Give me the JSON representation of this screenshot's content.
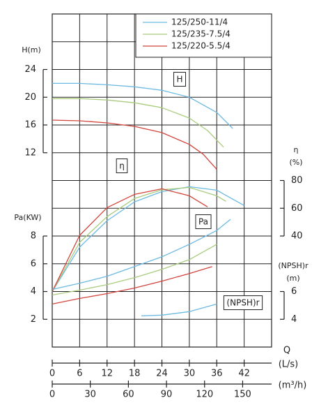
{
  "chart_data": {
    "type": "line",
    "x_label": "Q",
    "x_unit": "(L/s)",
    "xlim": [
      0,
      48
    ],
    "xticks": [
      0,
      6,
      12,
      18,
      24,
      30,
      36,
      42
    ],
    "x2_unit": "(m³/h)",
    "x2lim": [
      0,
      172.8
    ],
    "x2ticks": [
      0,
      30,
      60,
      90,
      120,
      150
    ],
    "grid": true,
    "legend": [
      {
        "name": "125/250-11/4",
        "color": "#6cb9e2"
      },
      {
        "name": "125/235-7.5/4",
        "color": "#a9cc7e"
      },
      {
        "name": "125/220-5.5/4",
        "color": "#d2443c"
      }
    ],
    "panels": [
      {
        "curve_label": "H",
        "axis_label": [
          "H(m)"
        ],
        "ylim": [
          12,
          24
        ],
        "yticks": [
          12,
          16,
          20,
          24
        ],
        "series": [
          {
            "color": "#6cb9e2",
            "x": [
              0,
              6,
              12,
              18,
              24,
              30,
              36,
              39.5
            ],
            "values": [
              22.0,
              22.0,
              21.8,
              21.5,
              21.0,
              20.0,
              17.8,
              15.5
            ]
          },
          {
            "color": "#a9cc7e",
            "x": [
              0,
              6,
              12,
              18,
              24,
              30,
              34,
              37.5
            ],
            "values": [
              19.8,
              19.8,
              19.6,
              19.2,
              18.5,
              17.0,
              15.2,
              12.8
            ]
          },
          {
            "color": "#d2443c",
            "x": [
              0,
              6,
              12,
              18,
              24,
              30,
              33,
              36
            ],
            "values": [
              16.7,
              16.6,
              16.3,
              15.8,
              14.9,
              13.2,
              11.8,
              9.6
            ]
          }
        ]
      },
      {
        "curve_label": "η",
        "axis_label": [
          "η",
          "(%)"
        ],
        "ylim": [
          40,
          80
        ],
        "yticks": [
          40,
          60,
          80
        ],
        "series": [
          {
            "color": "#6cb9e2",
            "x": [
              0,
              6,
              12,
              18,
              24,
              30,
              36,
              42
            ],
            "values": [
              0,
              32,
              51,
              64.6,
              72,
              75.5,
              73,
              62
            ]
          },
          {
            "color": "#a9cc7e",
            "x": [
              0,
              6,
              12,
              18,
              24,
              30,
              36,
              38
            ],
            "values": [
              0,
              35.4,
              54,
              67,
              73.3,
              75,
              69,
              65
            ]
          },
          {
            "color": "#d2443c",
            "x": [
              0,
              6,
              12,
              18,
              24,
              30,
              34
            ],
            "values": [
              0,
              40.5,
              60.5,
              70,
              74,
              69,
              61
            ]
          }
        ]
      },
      {
        "curve_label": "Pa",
        "axis_label": [
          "Pa(KW)"
        ],
        "ylim": [
          2,
          8
        ],
        "yticks": [
          2,
          4,
          6,
          8
        ],
        "series": [
          {
            "color": "#6cb9e2",
            "x": [
              0,
              6,
              12,
              18,
              24,
              30,
              36,
              39
            ],
            "values": [
              4.15,
              4.6,
              5.1,
              5.8,
              6.5,
              7.4,
              8.4,
              9.2
            ]
          },
          {
            "color": "#a9cc7e",
            "x": [
              0,
              6,
              12,
              18,
              24,
              30,
              36
            ],
            "values": [
              3.75,
              4.1,
              4.5,
              5.0,
              5.6,
              6.3,
              7.4
            ]
          },
          {
            "color": "#d2443c",
            "x": [
              0,
              6,
              12,
              18,
              24,
              30,
              35
            ],
            "values": [
              3.1,
              3.5,
              3.85,
              4.25,
              4.75,
              5.3,
              5.8
            ]
          }
        ]
      },
      {
        "curve_label": "(NPSH)r",
        "axis_label": [
          "(NPSH)r",
          "(m)"
        ],
        "ylim": [
          4,
          6
        ],
        "yticks": [
          4,
          6
        ],
        "series": [
          {
            "color": "#6cb9e2",
            "x": [
              19.5,
              24,
              30,
              36
            ],
            "values": [
              4.25,
              4.3,
              4.55,
              5.1
            ]
          }
        ]
      }
    ]
  }
}
